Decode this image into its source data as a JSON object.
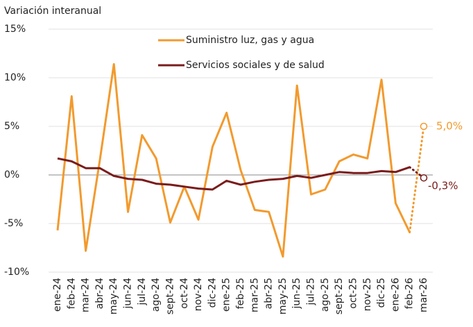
{
  "chart_data": {
    "type": "line",
    "subtitle": "Variación interanual",
    "categories": [
      "ene-24",
      "feb-24",
      "mar-24",
      "abr-24",
      "may-24",
      "jun-24",
      "jul-24",
      "ago-24",
      "sept-24",
      "oct-24",
      "nov-24",
      "dic-24",
      "ene-25",
      "feb-25",
      "mar-25",
      "abr-25",
      "may-25",
      "jun-25",
      "jul-25",
      "ago-25",
      "sept-25",
      "oct-25",
      "nov-25",
      "dic-25",
      "ene-26",
      "feb-26",
      "mar-26"
    ],
    "series": [
      {
        "name": "Suministro luz, gas y agua",
        "color": "#f29a2e",
        "values": [
          -5.7,
          8.1,
          -7.8,
          1.5,
          11.4,
          -3.8,
          4.1,
          1.7,
          -4.9,
          -1.2,
          -4.6,
          2.9,
          6.4,
          0.5,
          -3.6,
          -3.8,
          -8.4,
          9.2,
          -2.0,
          -1.5,
          1.4,
          2.1,
          1.7,
          9.8,
          -2.9,
          -5.9,
          5.0
        ],
        "value_labels": {
          "26": "5,0%"
        }
      },
      {
        "name": "Servicios sociales y de salud",
        "color": "#7a1c1c",
        "values": [
          1.7,
          1.4,
          0.7,
          0.7,
          -0.1,
          -0.4,
          -0.5,
          -0.9,
          -1.0,
          -1.2,
          -1.4,
          -1.5,
          -0.6,
          -1.0,
          -0.7,
          -0.5,
          -0.4,
          -0.1,
          -0.3,
          0.0,
          0.3,
          0.2,
          0.2,
          0.4,
          0.3,
          0.8,
          -0.3
        ],
        "value_labels": {
          "26": "-0,3%"
        }
      }
    ],
    "last_point_dotted": true,
    "ylim": [
      -10,
      15
    ],
    "yticks": [
      {
        "value": -10,
        "label": "-10%"
      },
      {
        "value": -5,
        "label": "-5%"
      },
      {
        "value": 0,
        "label": "0%"
      },
      {
        "value": 5,
        "label": "5%"
      },
      {
        "value": 10,
        "label": "10%"
      },
      {
        "value": 15,
        "label": "15%"
      }
    ],
    "grid": true
  }
}
